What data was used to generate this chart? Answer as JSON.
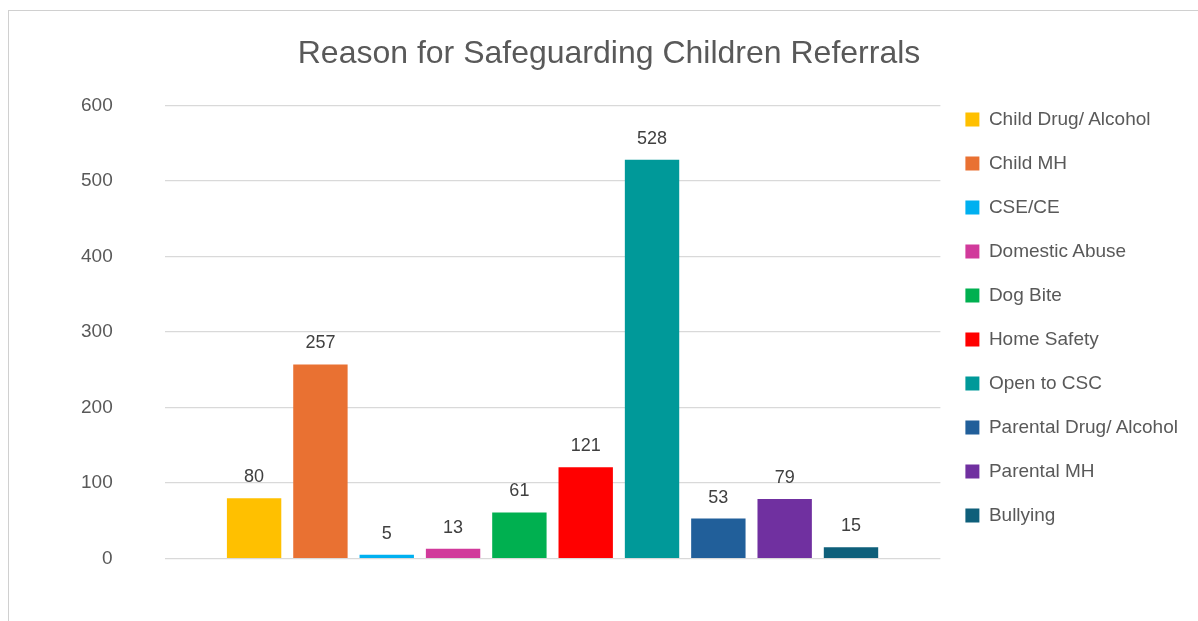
{
  "chart_data": {
    "type": "bar",
    "title": "Reason for Safeguarding Children Referrals",
    "categories": [
      null
    ],
    "series": [
      {
        "name": "Child Drug/ Alcohol",
        "color": "#ffc000",
        "values": [
          80
        ]
      },
      {
        "name": "Child MH",
        "color": "#e97132",
        "values": [
          257
        ]
      },
      {
        "name": "CSE/CE",
        "color": "#00b0f0",
        "values": [
          5
        ]
      },
      {
        "name": "Domestic Abuse",
        "color": "#d13a9b",
        "values": [
          13
        ]
      },
      {
        "name": "Dog Bite",
        "color": "#00b050",
        "values": [
          61
        ]
      },
      {
        "name": "Home Safety",
        "color": "#ff0000",
        "values": [
          121
        ]
      },
      {
        "name": "Open to CSC",
        "color": "#009999",
        "values": [
          528
        ]
      },
      {
        "name": "Parental Drug/ Alcohol",
        "color": "#215f9a",
        "values": [
          53
        ]
      },
      {
        "name": "Parental MH",
        "color": "#7030a0",
        "values": [
          79
        ]
      },
      {
        "name": "Bullying",
        "color": "#0e5f7a",
        "values": [
          15
        ]
      }
    ],
    "ylim": [
      0,
      600
    ],
    "yticks": [
      0,
      100,
      200,
      300,
      400,
      500,
      600
    ],
    "grid": "y",
    "legend": "right",
    "data_labels": true
  }
}
